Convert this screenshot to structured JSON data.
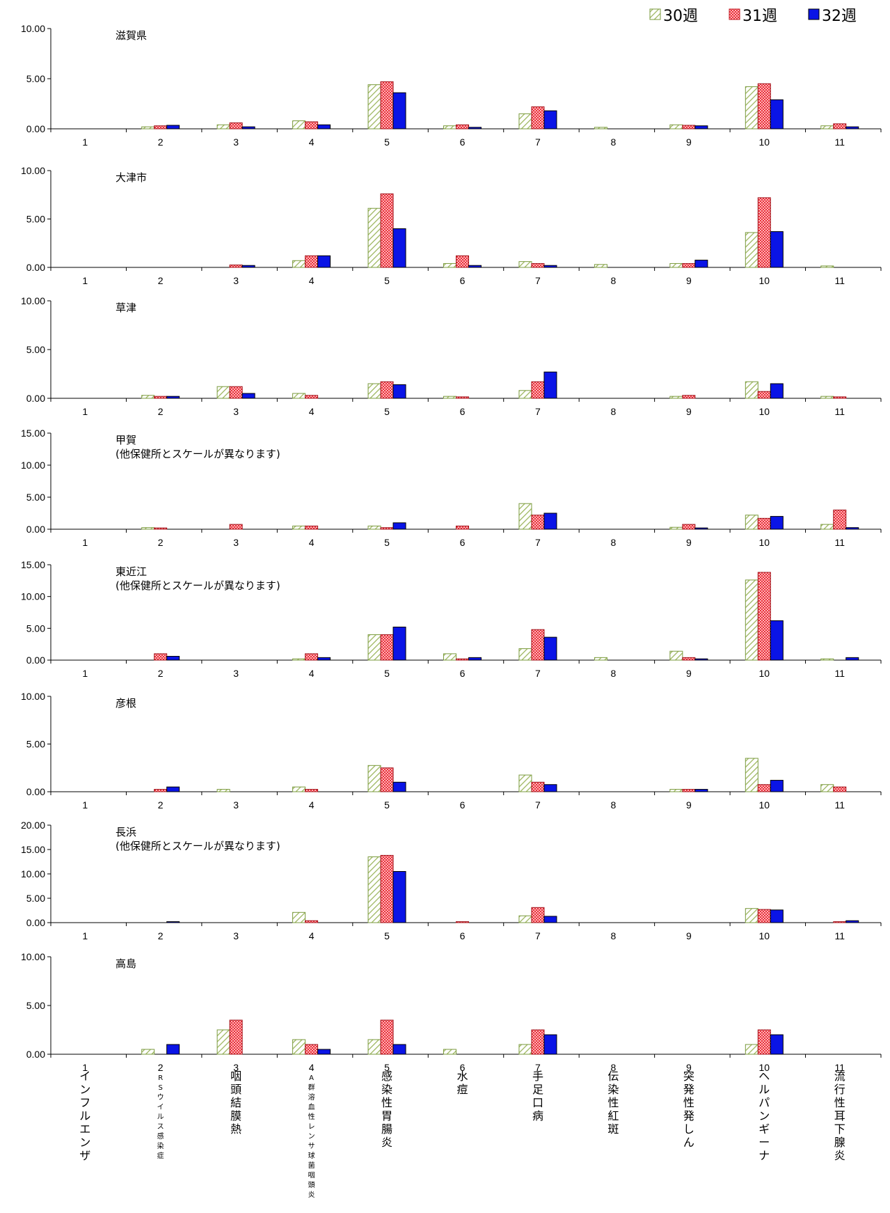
{
  "chart_data": {
    "type": "bar",
    "categories": [
      "1",
      "2",
      "3",
      "4",
      "5",
      "6",
      "7",
      "8",
      "9",
      "10",
      "11"
    ],
    "disease_labels": [
      "インフルエンザ",
      "RSウイルス感染症",
      "咽頭結膜熱",
      "A群溶血性レンサ球菌咽頭炎",
      "感染性胃腸炎",
      "水痘",
      "手足口病",
      "伝染性紅斑",
      "突発性発しん",
      "ヘルパンギーナ",
      "流行性耳下腺炎"
    ],
    "series_names": [
      "30週",
      "31週",
      "32週"
    ],
    "colors": {
      "w30": "#7a9a3c",
      "w31": "#e8303a",
      "w32": "#0a14e6"
    },
    "panels": [
      {
        "title": "滋賀県",
        "subtitle": "",
        "ylim": [
          0,
          10
        ],
        "ticks": [
          "0.00",
          "5.00",
          "10.00"
        ],
        "series": [
          {
            "name": "30週",
            "values": [
              0,
              0.2,
              0.4,
              0.8,
              4.4,
              0.3,
              1.5,
              0.15,
              0.4,
              4.2,
              0.3
            ]
          },
          {
            "name": "31週",
            "values": [
              0,
              0.3,
              0.6,
              0.7,
              4.7,
              0.4,
              2.2,
              0,
              0.35,
              4.5,
              0.5
            ]
          },
          {
            "name": "32週",
            "values": [
              0,
              0.35,
              0.2,
              0.4,
              3.6,
              0.15,
              1.8,
              0,
              0.3,
              2.9,
              0.2
            ]
          }
        ]
      },
      {
        "title": "大津市",
        "subtitle": "",
        "ylim": [
          0,
          10
        ],
        "ticks": [
          "0.00",
          "5.00",
          "10.00"
        ],
        "series": [
          {
            "name": "30週",
            "values": [
              0,
              0,
              0,
              0.7,
              6.1,
              0.4,
              0.6,
              0.3,
              0.4,
              3.6,
              0.15
            ]
          },
          {
            "name": "31週",
            "values": [
              0,
              0,
              0.25,
              1.2,
              7.6,
              1.2,
              0.4,
              0,
              0.4,
              7.2,
              0
            ]
          },
          {
            "name": "32週",
            "values": [
              0,
              0,
              0.2,
              1.2,
              4.0,
              0.2,
              0.2,
              0,
              0.75,
              3.7,
              0
            ]
          }
        ]
      },
      {
        "title": "草津",
        "subtitle": "",
        "ylim": [
          0,
          10
        ],
        "ticks": [
          "0.00",
          "5.00",
          "10.00"
        ],
        "series": [
          {
            "name": "30週",
            "values": [
              0,
              0.3,
              1.2,
              0.5,
              1.5,
              0.2,
              0.8,
              0,
              0.2,
              1.7,
              0.2
            ]
          },
          {
            "name": "31週",
            "values": [
              0,
              0.2,
              1.2,
              0.3,
              1.7,
              0.15,
              1.7,
              0,
              0.3,
              0.7,
              0.15
            ]
          },
          {
            "name": "32週",
            "values": [
              0,
              0.2,
              0.5,
              0,
              1.4,
              0,
              2.7,
              0,
              0,
              1.5,
              0
            ]
          }
        ]
      },
      {
        "title": "甲賀",
        "subtitle": "(他保健所とスケールが異なります)",
        "ylim": [
          0,
          15
        ],
        "ticks": [
          "0.00",
          "5.00",
          "10.00",
          "15.00"
        ],
        "series": [
          {
            "name": "30週",
            "values": [
              0,
              0.25,
              0,
              0.5,
              0.5,
              0,
              4.0,
              0,
              0.3,
              2.2,
              0.75
            ]
          },
          {
            "name": "31週",
            "values": [
              0,
              0.2,
              0.75,
              0.5,
              0.25,
              0.5,
              2.2,
              0,
              0.75,
              1.7,
              3.0
            ]
          },
          {
            "name": "32週",
            "values": [
              0,
              0,
              0,
              0,
              1.0,
              0,
              2.5,
              0,
              0.2,
              2.0,
              0.25
            ]
          }
        ]
      },
      {
        "title": "東近江",
        "subtitle": "(他保健所とスケールが異なります)",
        "ylim": [
          0,
          15
        ],
        "ticks": [
          "0.00",
          "5.00",
          "10.00",
          "15.00"
        ],
        "series": [
          {
            "name": "30週",
            "values": [
              0,
              0,
              0,
              0.2,
              4.0,
              1.0,
              1.8,
              0.4,
              1.4,
              12.6,
              0.2
            ]
          },
          {
            "name": "31週",
            "values": [
              0,
              1.0,
              0,
              1.0,
              4.0,
              0.2,
              4.8,
              0,
              0.4,
              13.8,
              0
            ]
          },
          {
            "name": "32週",
            "values": [
              0,
              0.6,
              0,
              0.4,
              5.2,
              0.4,
              3.6,
              0,
              0.2,
              6.2,
              0.4
            ]
          }
        ]
      },
      {
        "title": "彦根",
        "subtitle": "",
        "ylim": [
          0,
          10
        ],
        "ticks": [
          "0.00",
          "5.00",
          "10.00"
        ],
        "series": [
          {
            "name": "30週",
            "values": [
              0,
              0,
              0.25,
              0.5,
              2.75,
              0,
              1.75,
              0,
              0.25,
              3.5,
              0.75
            ]
          },
          {
            "name": "31週",
            "values": [
              0,
              0.25,
              0,
              0.25,
              2.5,
              0,
              1.0,
              0,
              0.25,
              0.75,
              0.5
            ]
          },
          {
            "name": "32週",
            "values": [
              0,
              0.5,
              0,
              0,
              1.0,
              0,
              0.75,
              0,
              0.25,
              1.2,
              0
            ]
          }
        ]
      },
      {
        "title": "長浜",
        "subtitle": "(他保健所とスケールが異なります)",
        "ylim": [
          0,
          20
        ],
        "ticks": [
          "0.00",
          "5.00",
          "10.00",
          "15.00",
          "20.00"
        ],
        "series": [
          {
            "name": "30週",
            "values": [
              0,
              0,
              0,
              2.1,
              13.5,
              0,
              1.4,
              0,
              0,
              2.9,
              0
            ]
          },
          {
            "name": "31週",
            "values": [
              0,
              0,
              0,
              0.4,
              13.8,
              0.2,
              3.1,
              0,
              0,
              2.7,
              0.2
            ]
          },
          {
            "name": "32週",
            "values": [
              0,
              0.2,
              0,
              0,
              10.5,
              0,
              1.3,
              0,
              0,
              2.6,
              0.4
            ]
          }
        ]
      },
      {
        "title": "高島",
        "subtitle": "",
        "ylim": [
          0,
          10
        ],
        "ticks": [
          "0.00",
          "5.00",
          "10.00"
        ],
        "series": [
          {
            "name": "30週",
            "values": [
              0,
              0.5,
              2.5,
              1.5,
              1.5,
              0.5,
              1.0,
              0,
              0,
              1.0,
              0
            ]
          },
          {
            "name": "31週",
            "values": [
              0,
              0,
              3.5,
              1.0,
              3.5,
              0,
              2.5,
              0,
              0,
              2.5,
              0
            ]
          },
          {
            "name": "32週",
            "values": [
              0,
              1.0,
              0,
              0.5,
              1.0,
              0,
              2.0,
              0,
              0,
              2.0,
              0
            ]
          }
        ]
      }
    ]
  }
}
